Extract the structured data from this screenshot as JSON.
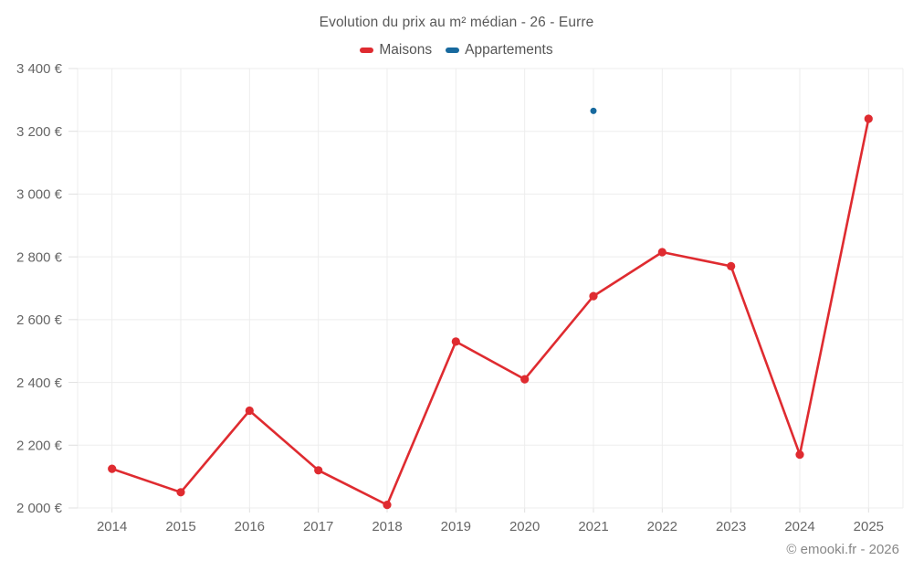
{
  "header": {
    "title": "Evolution du prix au m² médian - 26 - Eurre"
  },
  "legend": {
    "items": [
      {
        "label": "Maisons",
        "color": "#df2b30"
      },
      {
        "label": "Appartements",
        "color": "#17699e"
      }
    ]
  },
  "footer": {
    "credit": "© emooki.fr - 2026"
  },
  "chart_data": {
    "type": "line",
    "title": "Evolution du prix au m² médian - 26 - Eurre",
    "categories": [
      "2014",
      "2015",
      "2016",
      "2017",
      "2018",
      "2019",
      "2020",
      "2021",
      "2022",
      "2023",
      "2024",
      "2025"
    ],
    "series": [
      {
        "name": "Maisons",
        "color": "#df2b30",
        "values": [
          2125,
          2050,
          2310,
          2120,
          2010,
          2530,
          2410,
          2675,
          2815,
          2770,
          2170,
          3240
        ]
      },
      {
        "name": "Appartements",
        "color": "#17699e",
        "values": [
          null,
          null,
          null,
          null,
          null,
          null,
          null,
          3265,
          null,
          null,
          null,
          null
        ]
      }
    ],
    "xlabel": "",
    "ylabel": "",
    "ylim": [
      2000,
      3400
    ],
    "ytick_step": 200,
    "ytick_suffix": " €",
    "grid": true,
    "legend_position": "top",
    "colors": {
      "grid": "#ededed",
      "axis_tick": "#e0e0e0",
      "tick_label": "#666666",
      "title_text": "#595959",
      "footer_text": "#878787"
    }
  }
}
